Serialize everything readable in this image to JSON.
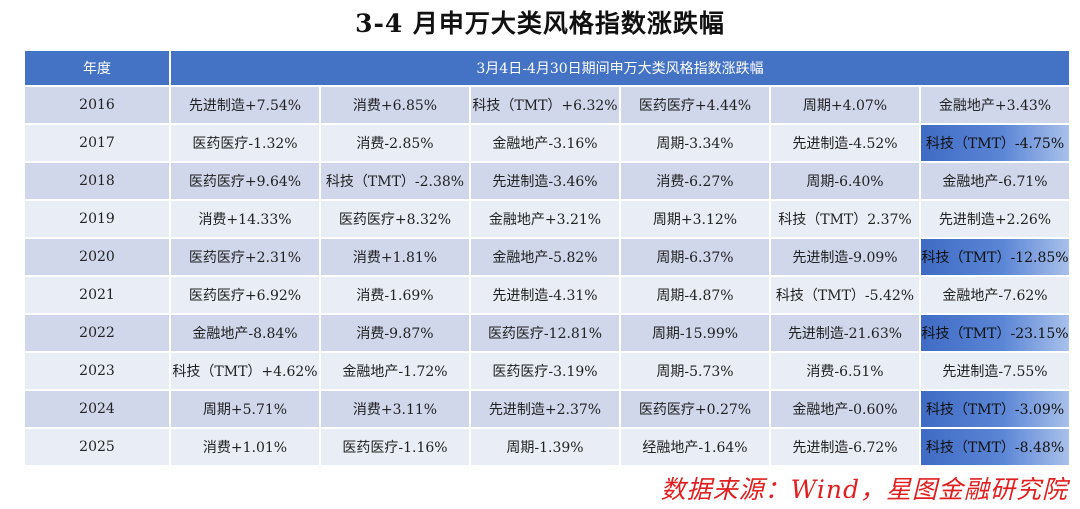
{
  "title": "3-4 月申万大类风格指数涨跌幅",
  "header": {
    "year_label": "年度",
    "period_label": "3月4日-4月30日期间申万大类风格指数涨跌幅"
  },
  "rows": [
    {
      "year": "2016",
      "cells": [
        "先进制造+7.54%",
        "消费+6.85%",
        "科技（TMT）+6.32%",
        "医药医疗+4.44%",
        "周期+4.07%",
        "金融地产+3.43%"
      ],
      "highlight_last": false
    },
    {
      "year": "2017",
      "cells": [
        "医药医疗-1.32%",
        "消费-2.85%",
        "金融地产-3.16%",
        "周期-3.34%",
        "先进制造-4.52%",
        "科技（TMT）-4.75%"
      ],
      "highlight_last": true
    },
    {
      "year": "2018",
      "cells": [
        "医药医疗+9.64%",
        "科技（TMT）-2.38%",
        "先进制造-3.46%",
        "消费-6.27%",
        "周期-6.40%",
        "金融地产-6.71%"
      ],
      "highlight_last": false
    },
    {
      "year": "2019",
      "cells": [
        "消费+14.33%",
        "医药医疗+8.32%",
        "金融地产+3.21%",
        "周期+3.12%",
        "科技（TMT）2.37%",
        "先进制造+2.26%"
      ],
      "highlight_last": false
    },
    {
      "year": "2020",
      "cells": [
        "医药医疗+2.31%",
        "消费+1.81%",
        "金融地产-5.82%",
        "周期-6.37%",
        "先进制造-9.09%",
        "科技（TMT）-12.85%"
      ],
      "highlight_last": true
    },
    {
      "year": "2021",
      "cells": [
        "医药医疗+6.92%",
        "消费-1.69%",
        "先进制造-4.31%",
        "周期-4.87%",
        "科技（TMT）-5.42%",
        "金融地产-7.62%"
      ],
      "highlight_last": false
    },
    {
      "year": "2022",
      "cells": [
        "金融地产-8.84%",
        "消费-9.87%",
        "医药医疗-12.81%",
        "周期-15.99%",
        "先进制造-21.63%",
        "科技（TMT）-23.15%"
      ],
      "highlight_last": true
    },
    {
      "year": "2023",
      "cells": [
        "科技（TMT）+4.62%",
        "金融地产-1.72%",
        "医药医疗-3.19%",
        "周期-5.73%",
        "消费-6.51%",
        "先进制造-7.55%"
      ],
      "highlight_last": false
    },
    {
      "year": "2024",
      "cells": [
        "周期+5.71%",
        "消费+3.11%",
        "先进制造+2.37%",
        "医药医疗+0.27%",
        "金融地产-0.60%",
        "科技（TMT）-3.09%"
      ],
      "highlight_last": true
    },
    {
      "year": "2025",
      "cells": [
        "消费+1.01%",
        "医药医疗-1.16%",
        "周期-1.39%",
        "经融地产-1.64%",
        "先进制造-6.72%",
        "科技（TMT）-8.48%"
      ],
      "highlight_last": true
    }
  ],
  "source": "数据来源：Wind，星图金融研究院"
}
